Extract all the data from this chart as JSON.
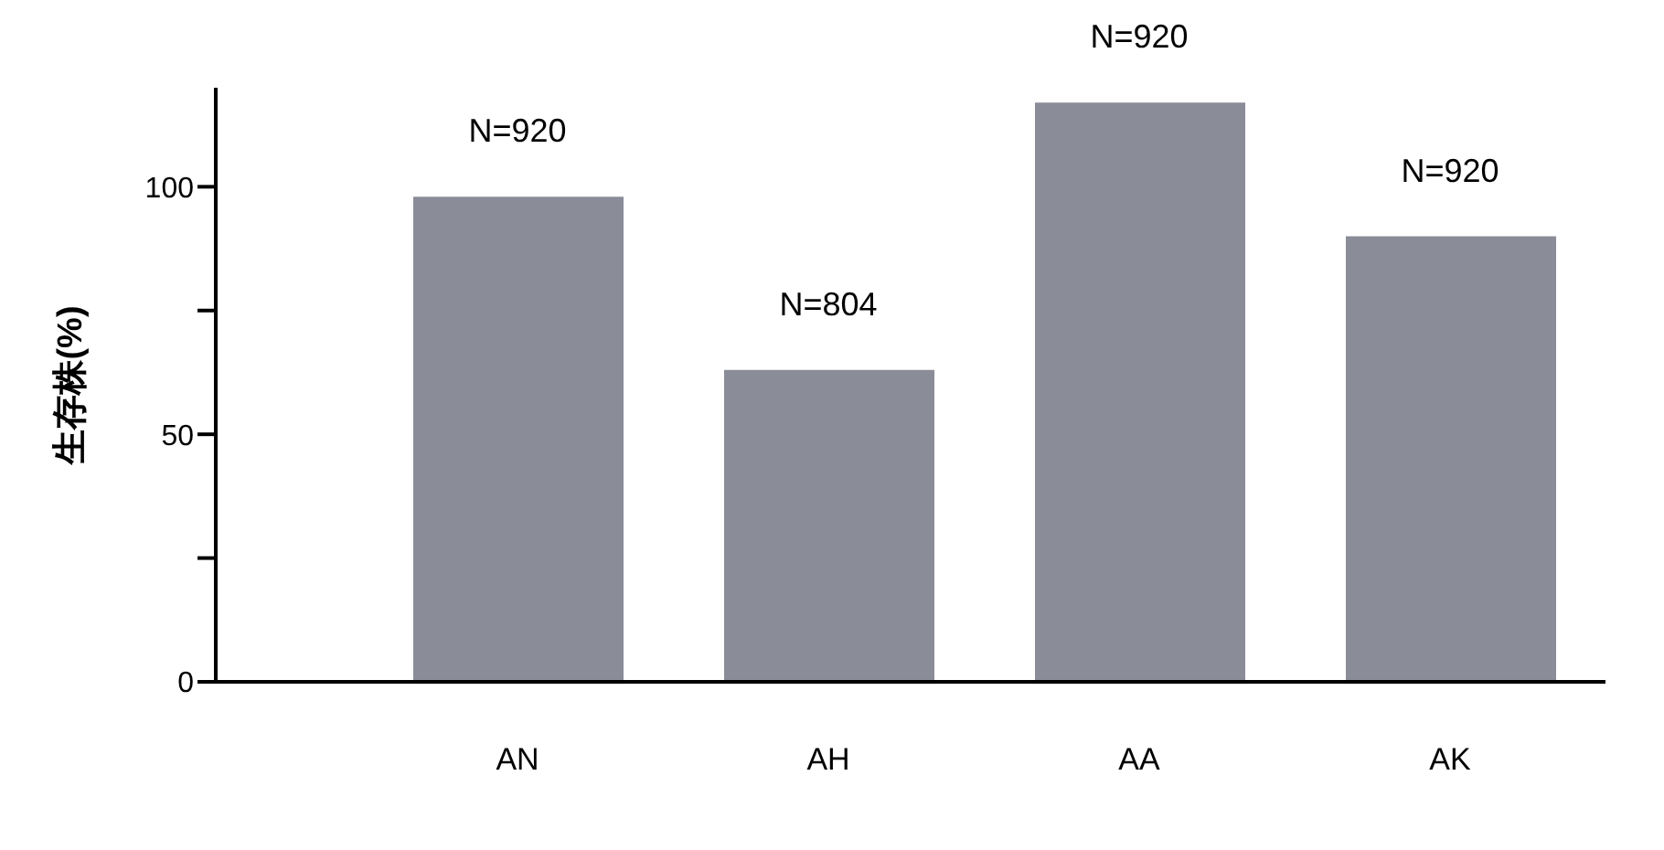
{
  "chart_data": {
    "type": "bar",
    "ylabel": "生存株(%)",
    "categories": [
      "AN",
      "AH",
      "AA",
      "AK"
    ],
    "values": [
      98,
      63,
      117,
      90
    ],
    "color": "#8a8c98",
    "ylim": [
      0,
      120
    ],
    "yticks": [
      0,
      {
        "value": 25,
        "label": null
      },
      50,
      {
        "value": 75,
        "label": null
      },
      100
    ],
    "grid": false,
    "annotations": [
      {
        "text": "N=920",
        "x": "AN",
        "y": 98
      },
      {
        "text": "N=804",
        "x": "AH",
        "y": 63
      },
      {
        "text": "N=920",
        "x": "AA",
        "y": 117
      },
      {
        "text": "N=920",
        "x": "AK",
        "y": 90
      }
    ]
  }
}
